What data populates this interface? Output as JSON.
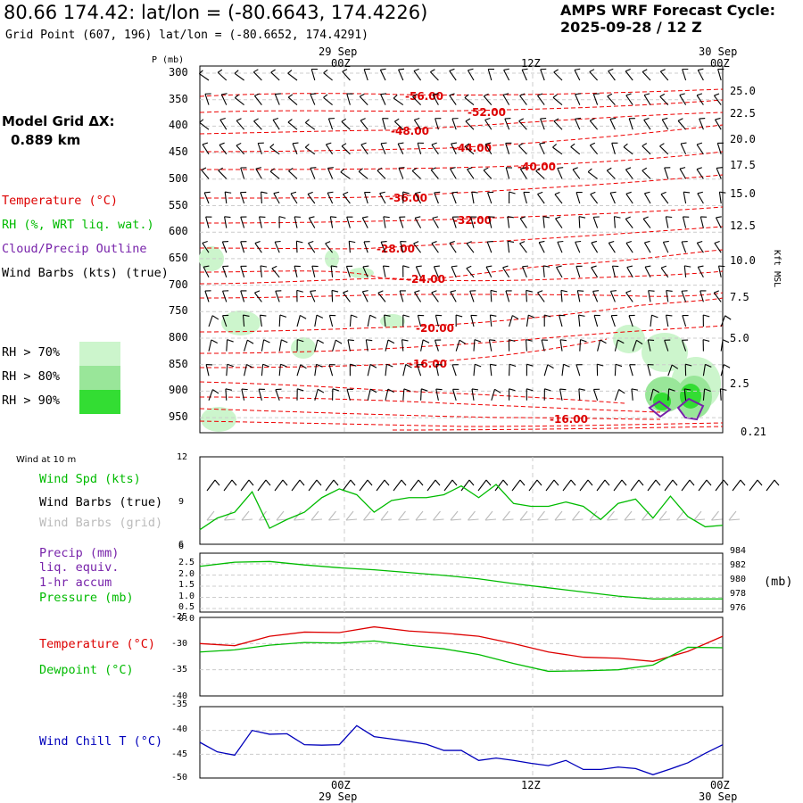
{
  "header": {
    "title": "80.66 174.42:  lat/lon = (-80.6643, 174.4226)",
    "subtitle": "Grid Point (607, 196) lat/lon = (-80.6652, 174.4291)",
    "cycle_line1": "AMPS WRF Forecast Cycle:",
    "cycle_line2": "2025-09-28 / 12  Z"
  },
  "time_axis": {
    "top_dates": [
      "29 Sep",
      "30 Sep"
    ],
    "labels": [
      "00Z",
      "12Z",
      "00Z"
    ],
    "bottom_dates": [
      "29 Sep",
      "30 Sep"
    ]
  },
  "legend": {
    "model_grid_label": "Model Grid ΔX:",
    "model_grid_value": "0.889 km",
    "temperature": "Temperature (°C)",
    "rh": "RH (%, WRT liq. wat.)",
    "cloud": "Cloud/Precip Outline",
    "barbs": "Wind Barbs (kts) (true)",
    "rh_levels": [
      "RH > 70%",
      "RH > 80%",
      "RH > 90%"
    ],
    "rh_colors": [
      "#ccf5cc",
      "#99e699",
      "#33dd33"
    ]
  },
  "sounding": {
    "p_label": "P (mb)",
    "right_axis_label": "Kft MSL",
    "p_ticks": [
      "300",
      "350",
      "400",
      "450",
      "500",
      "550",
      "600",
      "650",
      "700",
      "750",
      "800",
      "850",
      "900",
      "950"
    ],
    "kft_ticks": [
      "25.0",
      "22.5",
      "20.0",
      "17.5",
      "15.0",
      "12.5",
      "10.0",
      "7.5",
      "5.0",
      "2.5",
      "0.21"
    ],
    "isotherm_labels": [
      "-56.00",
      "-52.00",
      "-48.00",
      "-44.00",
      "-40.00",
      "-36.00",
      "-32.00",
      "-28.00",
      "-24.00",
      "-20.00",
      "-16.00",
      "-16.00"
    ]
  },
  "panels": {
    "wind": {
      "title": "Wind at 10 m",
      "spd_label": "Wind Spd (kts)",
      "barbs_true": "Wind Barbs (true)",
      "barbs_grid": "Wind Barbs (grid)",
      "y_ticks": [
        "12",
        "9",
        "6"
      ]
    },
    "precip": {
      "line1": "Precip (mm)",
      "line2": "liq. equiv.",
      "line3": "1-hr accum",
      "pressure_label": "Pressure (mb)",
      "left_ticks": [
        "2.5",
        "2.0",
        "1.5",
        "1.0",
        "0.5",
        "0.0"
      ],
      "right_ticks": [
        "984",
        "982",
        "980",
        "978",
        "976"
      ],
      "right_unit": "(mb)"
    },
    "temp": {
      "temp_label": "Temperature (°C)",
      "dew_label": "Dewpoint (°C)",
      "y_ticks": [
        "-25",
        "-30",
        "-35",
        "-40"
      ]
    },
    "chill": {
      "label": "Wind Chill T (°C)",
      "y_ticks": [
        "-35",
        "-40",
        "-45",
        "-50"
      ]
    }
  },
  "chart_data": [
    {
      "type": "line",
      "title": "Wind at 10 m",
      "x_hours": [
        0,
        3,
        6,
        9,
        12,
        15,
        18,
        21,
        24,
        27,
        30,
        33,
        36,
        39,
        42,
        45,
        48,
        51,
        54,
        57,
        60,
        63,
        66,
        69,
        72,
        75,
        78,
        81,
        84,
        87,
        90
      ],
      "series": [
        {
          "name": "Wind Spd (kts)",
          "color": "#00bb00",
          "values": [
            7.0,
            7.8,
            8.2,
            9.6,
            7.1,
            7.7,
            8.2,
            9.2,
            9.8,
            9.4,
            8.2,
            9.0,
            9.2,
            9.2,
            9.4,
            10.0,
            9.2,
            10.1,
            8.8,
            8.6,
            8.6,
            8.9,
            8.6,
            7.7,
            8.8,
            9.1,
            7.8,
            9.3,
            7.9,
            7.2,
            7.3
          ]
        }
      ],
      "ylim": [
        6,
        12
      ]
    },
    {
      "type": "line",
      "title": "Pressure (mb)",
      "x_hours": [
        0,
        6,
        12,
        18,
        24,
        30,
        36,
        42,
        48,
        54,
        60,
        66,
        72,
        78,
        84,
        90
      ],
      "series": [
        {
          "name": "Pressure (mb)",
          "color": "#00bb00",
          "values": [
            982.6,
            983.2,
            983.3,
            982.8,
            982.4,
            982.1,
            981.7,
            981.3,
            980.8,
            980.1,
            979.5,
            978.9,
            978.3,
            977.9,
            977.9,
            977.9
          ]
        }
      ],
      "ylim": [
        976,
        984.5
      ]
    },
    {
      "type": "line",
      "title": "",
      "x_hours": [
        0,
        6,
        12,
        18,
        24,
        30,
        36,
        42,
        48,
        54,
        60,
        66,
        72,
        78,
        84,
        90
      ],
      "series": [
        {
          "name": "Temperature (°C)",
          "color": "#dd0000",
          "values": [
            -30.0,
            -30.4,
            -28.6,
            -27.8,
            -27.9,
            -26.8,
            -27.6,
            -28.0,
            -28.6,
            -30.0,
            -31.6,
            -32.6,
            -32.8,
            -33.4,
            -31.5,
            -28.6
          ]
        },
        {
          "name": "Dewpoint (°C)",
          "color": "#00bb00",
          "values": [
            -31.6,
            -31.2,
            -30.3,
            -29.8,
            -29.9,
            -29.5,
            -30.3,
            -31.0,
            -32.1,
            -33.8,
            -35.3,
            -35.2,
            -35.0,
            -34.1,
            -30.7,
            -30.8
          ]
        }
      ],
      "ylim": [
        -40,
        -25
      ]
    },
    {
      "type": "line",
      "title": "",
      "x_hours": [
        0,
        3,
        6,
        9,
        12,
        15,
        18,
        21,
        24,
        27,
        30,
        33,
        36,
        39,
        42,
        45,
        48,
        51,
        54,
        57,
        60,
        63,
        66,
        69,
        72,
        75,
        78,
        81,
        84,
        87,
        90
      ],
      "series": [
        {
          "name": "Wind Chill T (°C)",
          "color": "#0000bb",
          "values": [
            -42.5,
            -44.5,
            -45.2,
            -40.0,
            -40.8,
            -40.7,
            -43.0,
            -43.1,
            -43.0,
            -39.0,
            -41.3,
            -41.8,
            -42.3,
            -42.9,
            -44.2,
            -44.2,
            -46.3,
            -45.8,
            -46.3,
            -46.9,
            -47.4,
            -46.3,
            -48.2,
            -48.2,
            -47.7,
            -48.0,
            -49.3,
            -48.1,
            -46.8,
            -44.8,
            -43.0
          ]
        }
      ],
      "ylim": [
        -50,
        -35
      ]
    }
  ]
}
